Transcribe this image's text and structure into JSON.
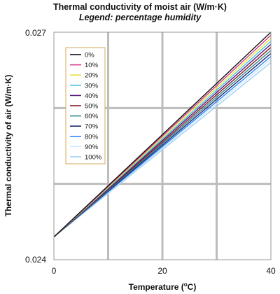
{
  "chart_data": {
    "type": "line",
    "title": "Thermal conductivity of moist air (W/m·K)",
    "subtitle": "Legend: percentage humidity",
    "xlabel": "Temperature (°C)",
    "xlabel_main": "Temperature (",
    "xlabel_sup": "o",
    "xlabel_tail": "C)",
    "ylabel": "Thermal conductivity of air (W/m·K)",
    "xlim": [
      0,
      40
    ],
    "ylim": [
      0.024,
      0.027
    ],
    "x_ticks": [
      "0",
      "20",
      "40"
    ],
    "y_ticks": [
      "0.024",
      "0.027"
    ],
    "grid": true,
    "legend_position": "top-left",
    "x": [
      0,
      40
    ],
    "series": [
      {
        "name": "0%",
        "color": "#111111",
        "values": [
          0.0243,
          0.027
        ]
      },
      {
        "name": "10%",
        "color": "#d63c8e",
        "values": [
          0.0243,
          0.02696
        ]
      },
      {
        "name": "20%",
        "color": "#e8e23a",
        "values": [
          0.0243,
          0.02692
        ]
      },
      {
        "name": "30%",
        "color": "#3fc3e0",
        "values": [
          0.0243,
          0.02688
        ]
      },
      {
        "name": "40%",
        "color": "#5a1a7a",
        "values": [
          0.0243,
          0.02684
        ]
      },
      {
        "name": "50%",
        "color": "#8a1a2a",
        "values": [
          0.0243,
          0.0268
        ]
      },
      {
        "name": "60%",
        "color": "#2e8c8c",
        "values": [
          0.0243,
          0.02676
        ]
      },
      {
        "name": "70%",
        "color": "#1a2a6e",
        "values": [
          0.0243,
          0.02672
        ]
      },
      {
        "name": "80%",
        "color": "#2f86ff",
        "values": [
          0.0243,
          0.02668
        ]
      },
      {
        "name": "90%",
        "color": "#cfe8ff",
        "values": [
          0.0243,
          0.02664
        ]
      },
      {
        "name": "100%",
        "color": "#9fd0f0",
        "values": [
          0.0243,
          0.0266
        ]
      }
    ]
  }
}
